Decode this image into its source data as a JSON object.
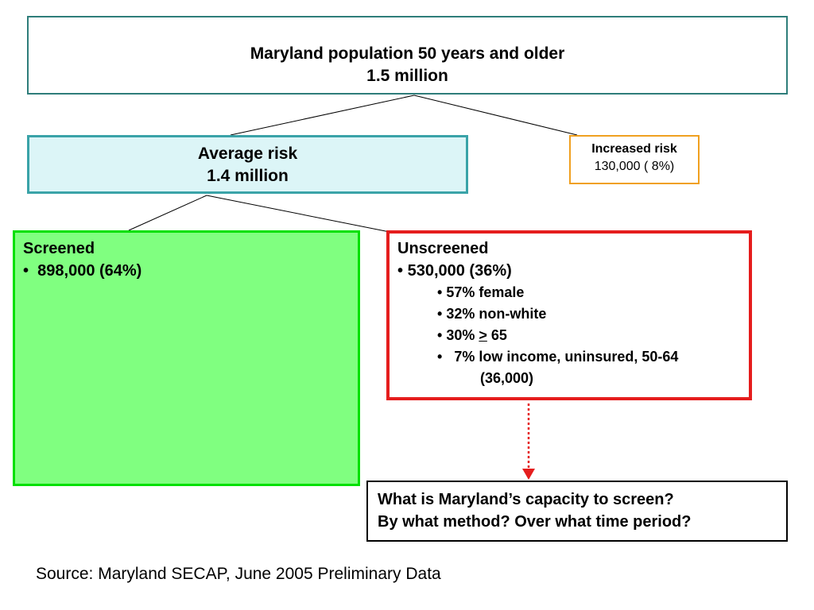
{
  "top": {
    "line1": "Maryland population 50 years and older",
    "line2": "1.5 million"
  },
  "average": {
    "line1": "Average risk",
    "line2": "1.4 million"
  },
  "increased": {
    "line1": "Increased risk",
    "line2": "130,000 ( 8%)"
  },
  "screened": {
    "title": "Screened",
    "bullet": "•",
    "value": "898,000 (64%)"
  },
  "unscreened": {
    "title": "Unscreened",
    "bullet": "•",
    "value": "530,000 (36%)",
    "items": [
      "57% female",
      "32% non-white"
    ],
    "age_prefix": "30% ",
    "age_symbol": ">",
    "age_suffix": " 65",
    "income_line": "7% low income, uninsured, 50-64",
    "income_cont": "(36,000)"
  },
  "question": {
    "line1": "What is Maryland’s capacity to screen?",
    "line2": "By what method? Over what time period?"
  },
  "source": "Source:  Maryland SECAP, June 2005 Preliminary Data",
  "colors": {
    "top_border": "#2e7d7a",
    "avg_border": "#3aa3a8",
    "avg_fill": "#dcf5f7",
    "inc_border": "#f0a020",
    "screened_fill": "#80ff80",
    "screened_border": "#00e000",
    "unscreened_border": "#e51d1d",
    "arrow": "#e51d1d"
  }
}
